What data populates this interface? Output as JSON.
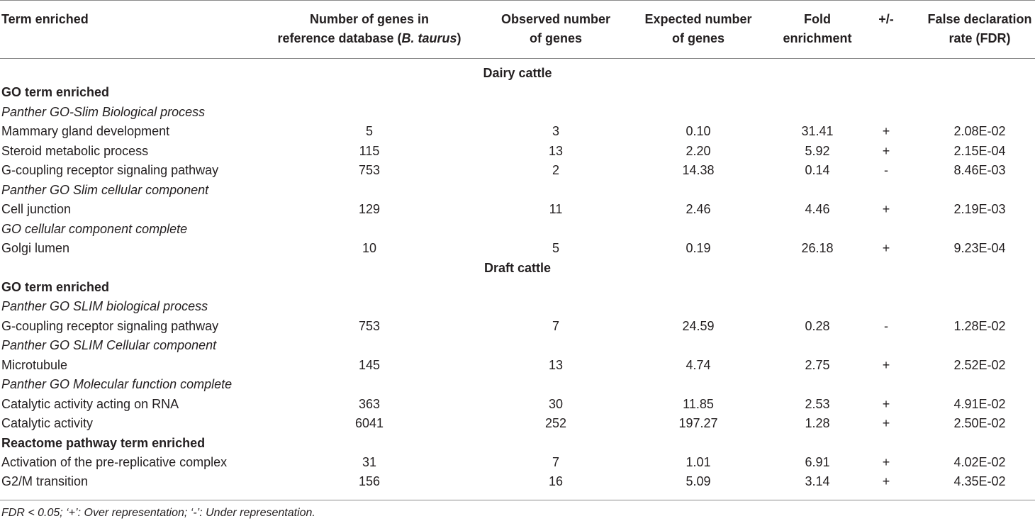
{
  "table": {
    "header": [
      [
        "Term enriched"
      ],
      [
        "Number of genes in",
        [
          "reference database (",
          "B. taurus",
          ")"
        ]
      ],
      [
        "Observed number",
        "of genes"
      ],
      [
        "Expected number",
        "of genes"
      ],
      [
        "Fold",
        "enrichment"
      ],
      [
        "+/-"
      ],
      [
        "False declaration",
        "rate (FDR)"
      ]
    ],
    "sections": [
      {
        "title": "Dairy cattle",
        "blocks": [
          {
            "title": "GO term enriched",
            "groups": [
              {
                "title": "Panther GO-Slim Biological process",
                "rows": [
                  [
                    "Mammary gland development",
                    "5",
                    "3",
                    "0.10",
                    "31.41",
                    "+",
                    "2.08E-02"
                  ],
                  [
                    "Steroid metabolic process",
                    "115",
                    "13",
                    "2.20",
                    "5.92",
                    "+",
                    "2.15E-04"
                  ],
                  [
                    "G-coupling receptor signaling pathway",
                    "753",
                    "2",
                    "14.38",
                    "0.14",
                    "-",
                    "8.46E-03"
                  ]
                ]
              },
              {
                "title": "Panther GO Slim cellular component",
                "rows": [
                  [
                    "Cell junction",
                    "129",
                    "11",
                    "2.46",
                    "4.46",
                    "+",
                    "2.19E-03"
                  ]
                ]
              },
              {
                "title": "GO cellular component complete",
                "rows": [
                  [
                    "Golgi lumen",
                    "10",
                    "5",
                    "0.19",
                    "26.18",
                    "+",
                    "9.23E-04"
                  ]
                ]
              }
            ]
          }
        ]
      },
      {
        "title": "Draft cattle",
        "blocks": [
          {
            "title": "GO term enriched",
            "groups": [
              {
                "title": "Panther GO SLIM biological process",
                "rows": [
                  [
                    "G-coupling receptor signaling pathway",
                    "753",
                    "7",
                    "24.59",
                    "0.28",
                    "-",
                    "1.28E-02"
                  ]
                ]
              },
              {
                "title": "Panther GO SLIM Cellular component",
                "rows": [
                  [
                    "Microtubule",
                    "145",
                    "13",
                    "4.74",
                    "2.75",
                    "+",
                    "2.52E-02"
                  ]
                ]
              },
              {
                "title": "Panther GO Molecular function complete",
                "rows": [
                  [
                    "Catalytic activity acting on RNA",
                    "363",
                    "30",
                    "11.85",
                    "2.53",
                    "+",
                    "4.91E-02"
                  ],
                  [
                    "Catalytic activity",
                    "6041",
                    "252",
                    "197.27",
                    "1.28",
                    "+",
                    "2.50E-02"
                  ]
                ]
              }
            ]
          },
          {
            "title": "Reactome pathway term enriched",
            "groups": [
              {
                "rows": [
                  [
                    "Activation of the pre-replicative complex",
                    "31",
                    "7",
                    "1.01",
                    "6.91",
                    "+",
                    "4.02E-02"
                  ],
                  [
                    "G2/M transition",
                    "156",
                    "16",
                    "5.09",
                    "3.14",
                    "+",
                    "4.35E-02"
                  ]
                ]
              }
            ]
          }
        ]
      }
    ],
    "footnote": "FDR < 0.05; ‘+’: Over representation; ‘-’: Under representation."
  }
}
